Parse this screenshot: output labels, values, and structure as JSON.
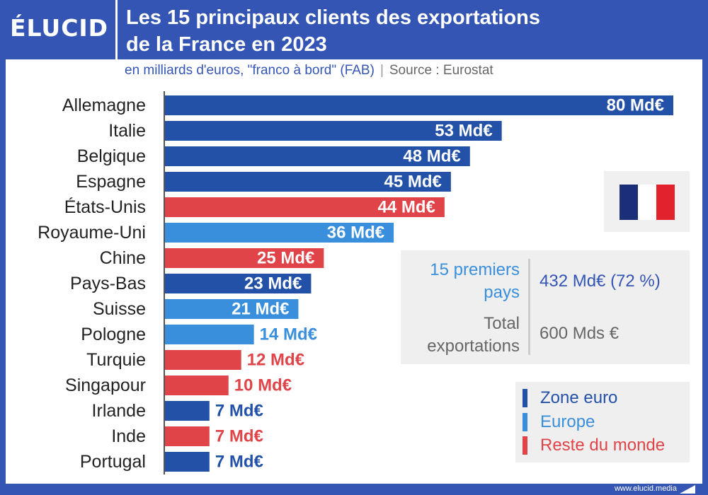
{
  "header": {
    "logo": "ÉLUCID",
    "title_line1": "Les 15 principaux clients des exportations",
    "title_line2": "de la France en 2023"
  },
  "subtitle": {
    "main": "en milliards d'euros, \"franco à bord\" (FAB)",
    "separator": "|",
    "source": "Source : Eurostat"
  },
  "colors": {
    "zone_euro": "#2351a8",
    "europe": "#3a8fdd",
    "reste_du_monde": "#e04448",
    "header_bg": "#3455b4",
    "axis": "#555555"
  },
  "chart_data": {
    "type": "bar",
    "orientation": "horizontal",
    "title": "Les 15 principaux clients des exportations de la France en 2023",
    "subtitle": "en milliards d'euros, \"franco à bord\" (FAB) | Source : Eurostat",
    "unit": "Md€",
    "categories": [
      "Allemagne",
      "Italie",
      "Belgique",
      "Espagne",
      "États-Unis",
      "Royaume-Uni",
      "Chine",
      "Pays-Bas",
      "Suisse",
      "Pologne",
      "Turquie",
      "Singapour",
      "Irlande",
      "Inde",
      "Portugal"
    ],
    "values": [
      80,
      53,
      48,
      45,
      44,
      36,
      25,
      23,
      21,
      14,
      12,
      10,
      7,
      7,
      7
    ],
    "value_labels": [
      "80 Md€",
      "53 Md€",
      "48 Md€",
      "45 Md€",
      "44 Md€",
      "36 Md€",
      "25 Md€",
      "23 Md€",
      "21 Md€",
      "14 Md€",
      "12 Md€",
      "10 Md€",
      "7 Md€",
      "7 Md€",
      "7 Md€"
    ],
    "groups": [
      "zone_euro",
      "zone_euro",
      "zone_euro",
      "zone_euro",
      "reste_du_monde",
      "europe",
      "reste_du_monde",
      "zone_euro",
      "europe",
      "europe",
      "reste_du_monde",
      "reste_du_monde",
      "zone_euro",
      "reste_du_monde",
      "zone_euro"
    ],
    "xlim": [
      0,
      80
    ],
    "grid": false,
    "legend_position": "bottom-right"
  },
  "summary": {
    "label1": "15 premiers pays",
    "value1": "432 Md€ (72 %)",
    "label2": "Total exportations",
    "value2": "600 Mds €"
  },
  "legend": {
    "items": [
      {
        "label": "Zone euro",
        "color": "#2351a8"
      },
      {
        "label": "Europe",
        "color": "#3a8fdd"
      },
      {
        "label": "Reste du monde",
        "color": "#e04448"
      }
    ]
  },
  "flag": {
    "colors": [
      "#1b2f78",
      "#ffffff",
      "#e2222c"
    ]
  },
  "footer": {
    "url": "www.elucid.media"
  }
}
